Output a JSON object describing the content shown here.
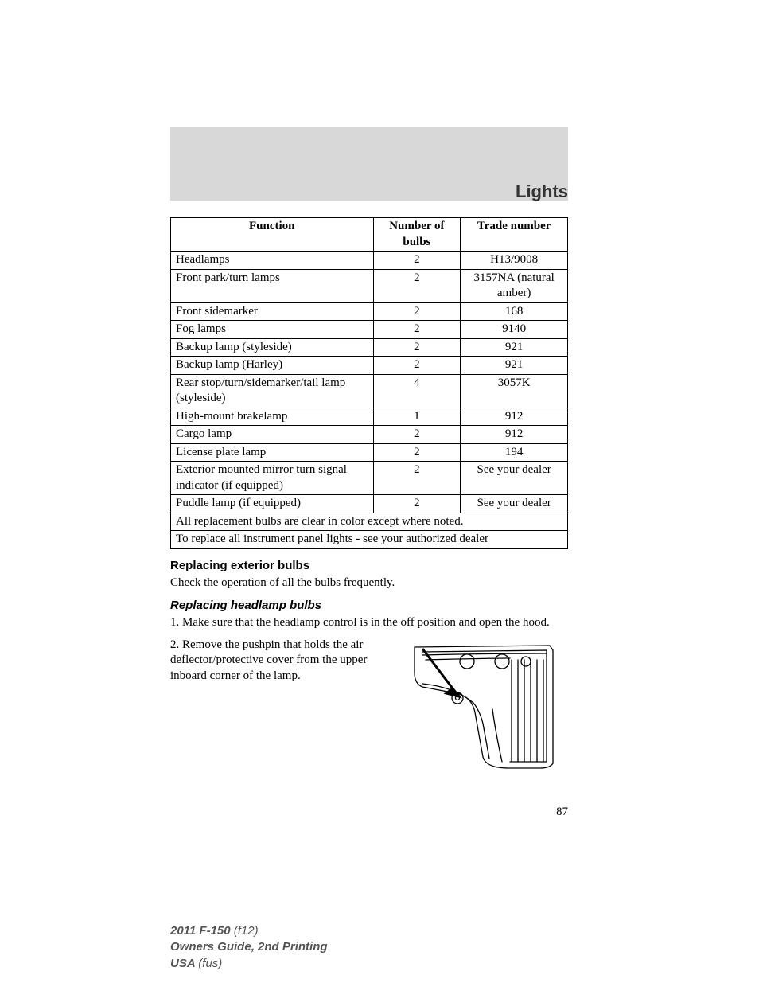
{
  "section_title": "Lights",
  "table": {
    "headers": [
      "Function",
      "Number of bulbs",
      "Trade number"
    ],
    "rows": [
      [
        "Headlamps",
        "2",
        "H13/9008"
      ],
      [
        "Front park/turn lamps",
        "2",
        "3157NA (natural amber)"
      ],
      [
        "Front sidemarker",
        "2",
        "168"
      ],
      [
        "Fog lamps",
        "2",
        "9140"
      ],
      [
        "Backup lamp (styleside)",
        "2",
        "921"
      ],
      [
        "Backup lamp (Harley)",
        "2",
        "921"
      ],
      [
        "Rear stop/turn/sidemarker/tail lamp (styleside)",
        "4",
        "3057K"
      ],
      [
        "High-mount brakelamp",
        "1",
        "912"
      ],
      [
        "Cargo lamp",
        "2",
        "912"
      ],
      [
        "License plate lamp",
        "2",
        "194"
      ],
      [
        "Exterior mounted mirror turn signal indicator (if equipped)",
        "2",
        "See your dealer"
      ],
      [
        "Puddle lamp (if equipped)",
        "2",
        "See your dealer"
      ]
    ],
    "footnote1": "All replacement bulbs are clear in color except where noted.",
    "footnote2": "To replace all instrument panel lights - see your authorized dealer"
  },
  "h2_replacing_exterior": "Replacing exterior bulbs",
  "p_check_operation": "Check the operation of all the bulbs frequently.",
  "h3_replacing_headlamp": "Replacing headlamp bulbs",
  "step1": "1. Make sure that the headlamp control is in the off position and open the hood.",
  "step2": "2. Remove the pushpin that holds the air deflector/protective cover from the upper inboard corner of the lamp.",
  "page_number": "87",
  "footer": {
    "line1a": "2011 F-150 ",
    "line1b": "(f12)",
    "line2": "Owners Guide, 2nd Printing",
    "line3a": "USA ",
    "line3b": "(fus)"
  }
}
